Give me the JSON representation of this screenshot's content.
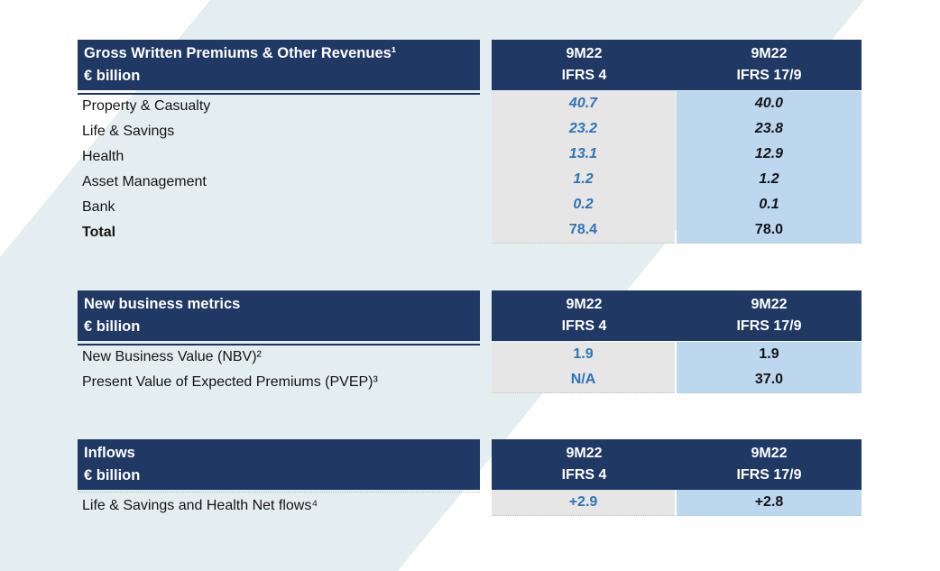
{
  "page": {
    "band_color": "#e4eef0",
    "header_bg_color": "#1f3864",
    "ifrs4_col_bg": "#e7e6e6",
    "ifrs17_col_bg": "#bdd7ee",
    "ifrs4_value_color": "#2e74b5",
    "ifrs17_value_color": "#121419"
  },
  "columns": {
    "ifrs4": {
      "line1": "9M22",
      "line2": "IFRS 4"
    },
    "ifrs17": {
      "line1": "9M22",
      "line2": "IFRS 17/9"
    }
  },
  "tables": [
    {
      "title": "Gross Written Premiums & Other Revenues¹",
      "unit": "€ billion",
      "rows": [
        {
          "label": "Property & Casualty",
          "ifrs4": "40.7",
          "ifrs17": "40.0"
        },
        {
          "label": "Life & Savings",
          "ifrs4": "23.2",
          "ifrs17": "23.8"
        },
        {
          "label": "Health",
          "ifrs4": "13.1",
          "ifrs17": "12.9"
        },
        {
          "label": "Asset Management",
          "ifrs4": "1.2",
          "ifrs17": "1.2"
        },
        {
          "label": "Bank",
          "ifrs4": "0.2",
          "ifrs17": "0.1"
        },
        {
          "label": "Total",
          "ifrs4": "78.4",
          "ifrs17": "78.0"
        }
      ]
    },
    {
      "title": "New business metrics",
      "unit": "€ billion",
      "rows": [
        {
          "label": "New Business Value (NBV)²",
          "ifrs4": "1.9",
          "ifrs17": "1.9"
        },
        {
          "label": "Present Value of Expected Premiums (PVEP)³",
          "ifrs4": "N/A",
          "ifrs17": "37.0"
        }
      ]
    },
    {
      "title": "Inflows",
      "unit": "€ billion",
      "rows": [
        {
          "label": "Life & Savings and Health Net flows⁴",
          "ifrs4": "+2.9",
          "ifrs17": "+2.8"
        }
      ]
    }
  ]
}
